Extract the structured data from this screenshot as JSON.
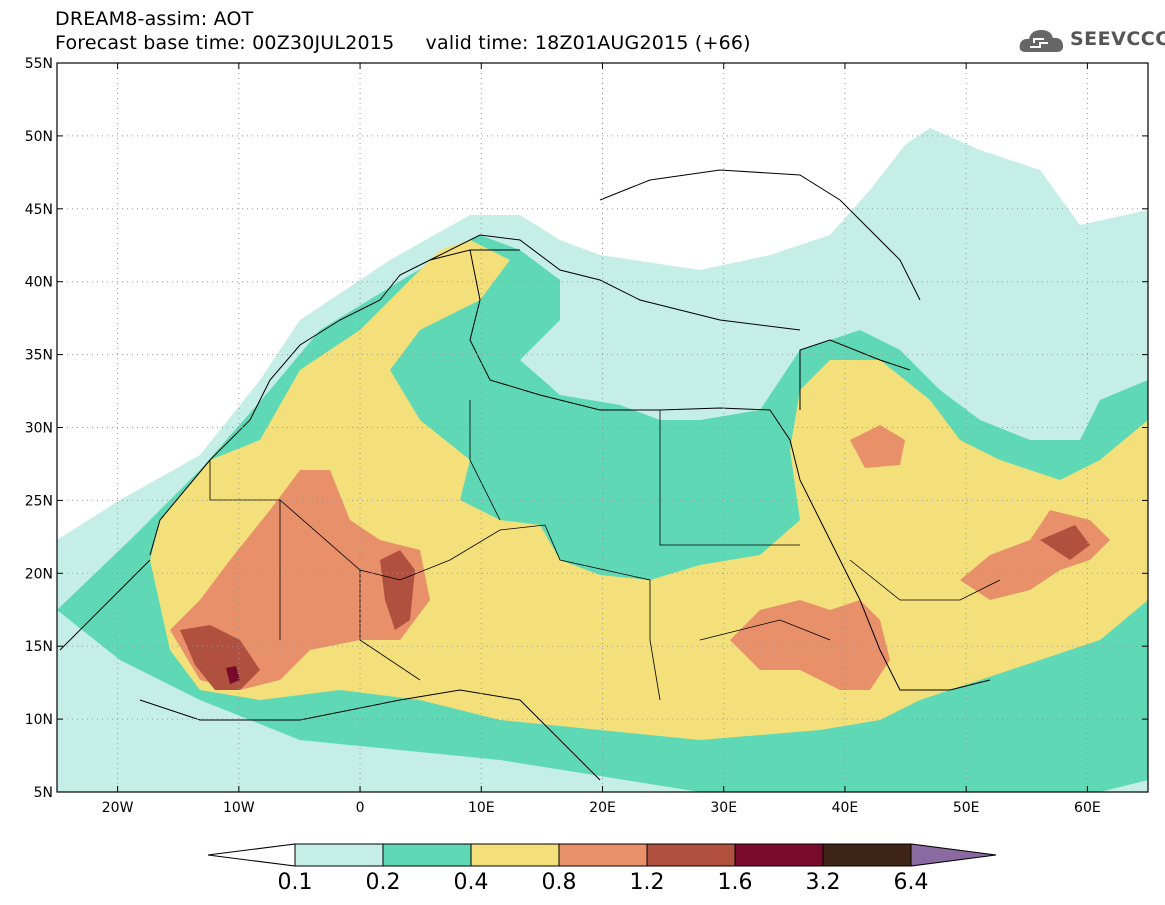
{
  "header": {
    "line1": "DREAM8-assim: AOT",
    "line2": "Forecast base time: 00Z30JUL2015     valid time: 18Z01AUG2015 (+66)"
  },
  "logo": {
    "text": "SEEVCCC",
    "icon": "cloud-icon"
  },
  "map": {
    "lon_range": [
      -25,
      65
    ],
    "lat_range": [
      5,
      55
    ],
    "lon_ticks": [
      {
        "value": -20,
        "label": "20W"
      },
      {
        "value": -10,
        "label": "10W"
      },
      {
        "value": 0,
        "label": "0"
      },
      {
        "value": 10,
        "label": "10E"
      },
      {
        "value": 20,
        "label": "20E"
      },
      {
        "value": 30,
        "label": "30E"
      },
      {
        "value": 40,
        "label": "40E"
      },
      {
        "value": 50,
        "label": "50E"
      },
      {
        "value": 60,
        "label": "60E"
      }
    ],
    "lat_ticks": [
      {
        "value": 55,
        "label": "55N"
      },
      {
        "value": 50,
        "label": "50N"
      },
      {
        "value": 45,
        "label": "45N"
      },
      {
        "value": 40,
        "label": "40N"
      },
      {
        "value": 35,
        "label": "35N"
      },
      {
        "value": 30,
        "label": "30N"
      },
      {
        "value": 25,
        "label": "25N"
      },
      {
        "value": 20,
        "label": "20N"
      },
      {
        "value": 15,
        "label": "15N"
      },
      {
        "value": 10,
        "label": "10N"
      },
      {
        "value": 5,
        "label": "5N"
      }
    ],
    "grid": "dotted"
  },
  "colorbar": {
    "colors": [
      "#ffffff",
      "#c4eee6",
      "#5fd9b5",
      "#f4e07a",
      "#e8906a",
      "#b0503e",
      "#7a0a2c",
      "#3e2515",
      "#8a6aa0"
    ],
    "labels": [
      "0.1",
      "0.2",
      "0.4",
      "0.8",
      "1.2",
      "1.6",
      "3.2",
      "6.4"
    ]
  }
}
